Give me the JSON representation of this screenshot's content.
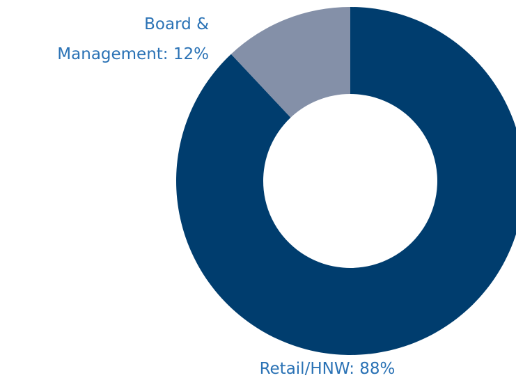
{
  "chart_data": {
    "type": "donut",
    "labels": [
      [
        "Retail/HNW: 88%"
      ],
      [
        "Board &",
        "Management: 12%"
      ]
    ],
    "values": [
      88,
      12
    ],
    "colors": [
      "#003d6e",
      "#8490a8"
    ]
  }
}
